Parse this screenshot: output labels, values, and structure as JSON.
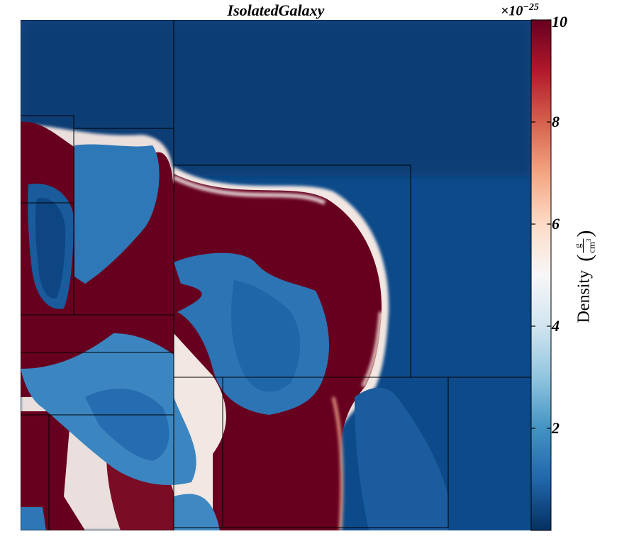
{
  "chart_data": {
    "type": "heatmap",
    "title": "IsolatedGalaxy",
    "colorbar": {
      "label": "Density",
      "unit_numerator": "g",
      "unit_denominator": "cm",
      "unit_denominator_exponent": "3",
      "multiplier_text": "×10",
      "multiplier_exponent": "−25",
      "range": [
        0,
        10
      ],
      "ticks": [
        {
          "value": 2,
          "label": "2"
        },
        {
          "value": 4,
          "label": "4"
        },
        {
          "value": 6,
          "label": "6"
        },
        {
          "value": 8,
          "label": "8"
        },
        {
          "value": 10,
          "label": "10"
        }
      ],
      "colormap": "RdBu_r",
      "colors": [
        "#053061",
        "#2166ac",
        "#4393c3",
        "#92c5de",
        "#d1e5f0",
        "#f7f7f7",
        "#fddbc7",
        "#f4a582",
        "#d6604d",
        "#b2182b",
        "#67001f"
      ]
    },
    "regions": [
      {
        "name": "upper-background",
        "value": 0.7
      },
      {
        "name": "dense-ring",
        "value": 10
      },
      {
        "name": "inner-cavity",
        "value": 1.6
      },
      {
        "name": "left-cavity",
        "value": 0.9
      },
      {
        "name": "lower-left-lobe",
        "value": 1.8
      },
      {
        "name": "lower-right-wedge",
        "value": 1.0
      }
    ],
    "axes_visible": false,
    "grid": false
  }
}
